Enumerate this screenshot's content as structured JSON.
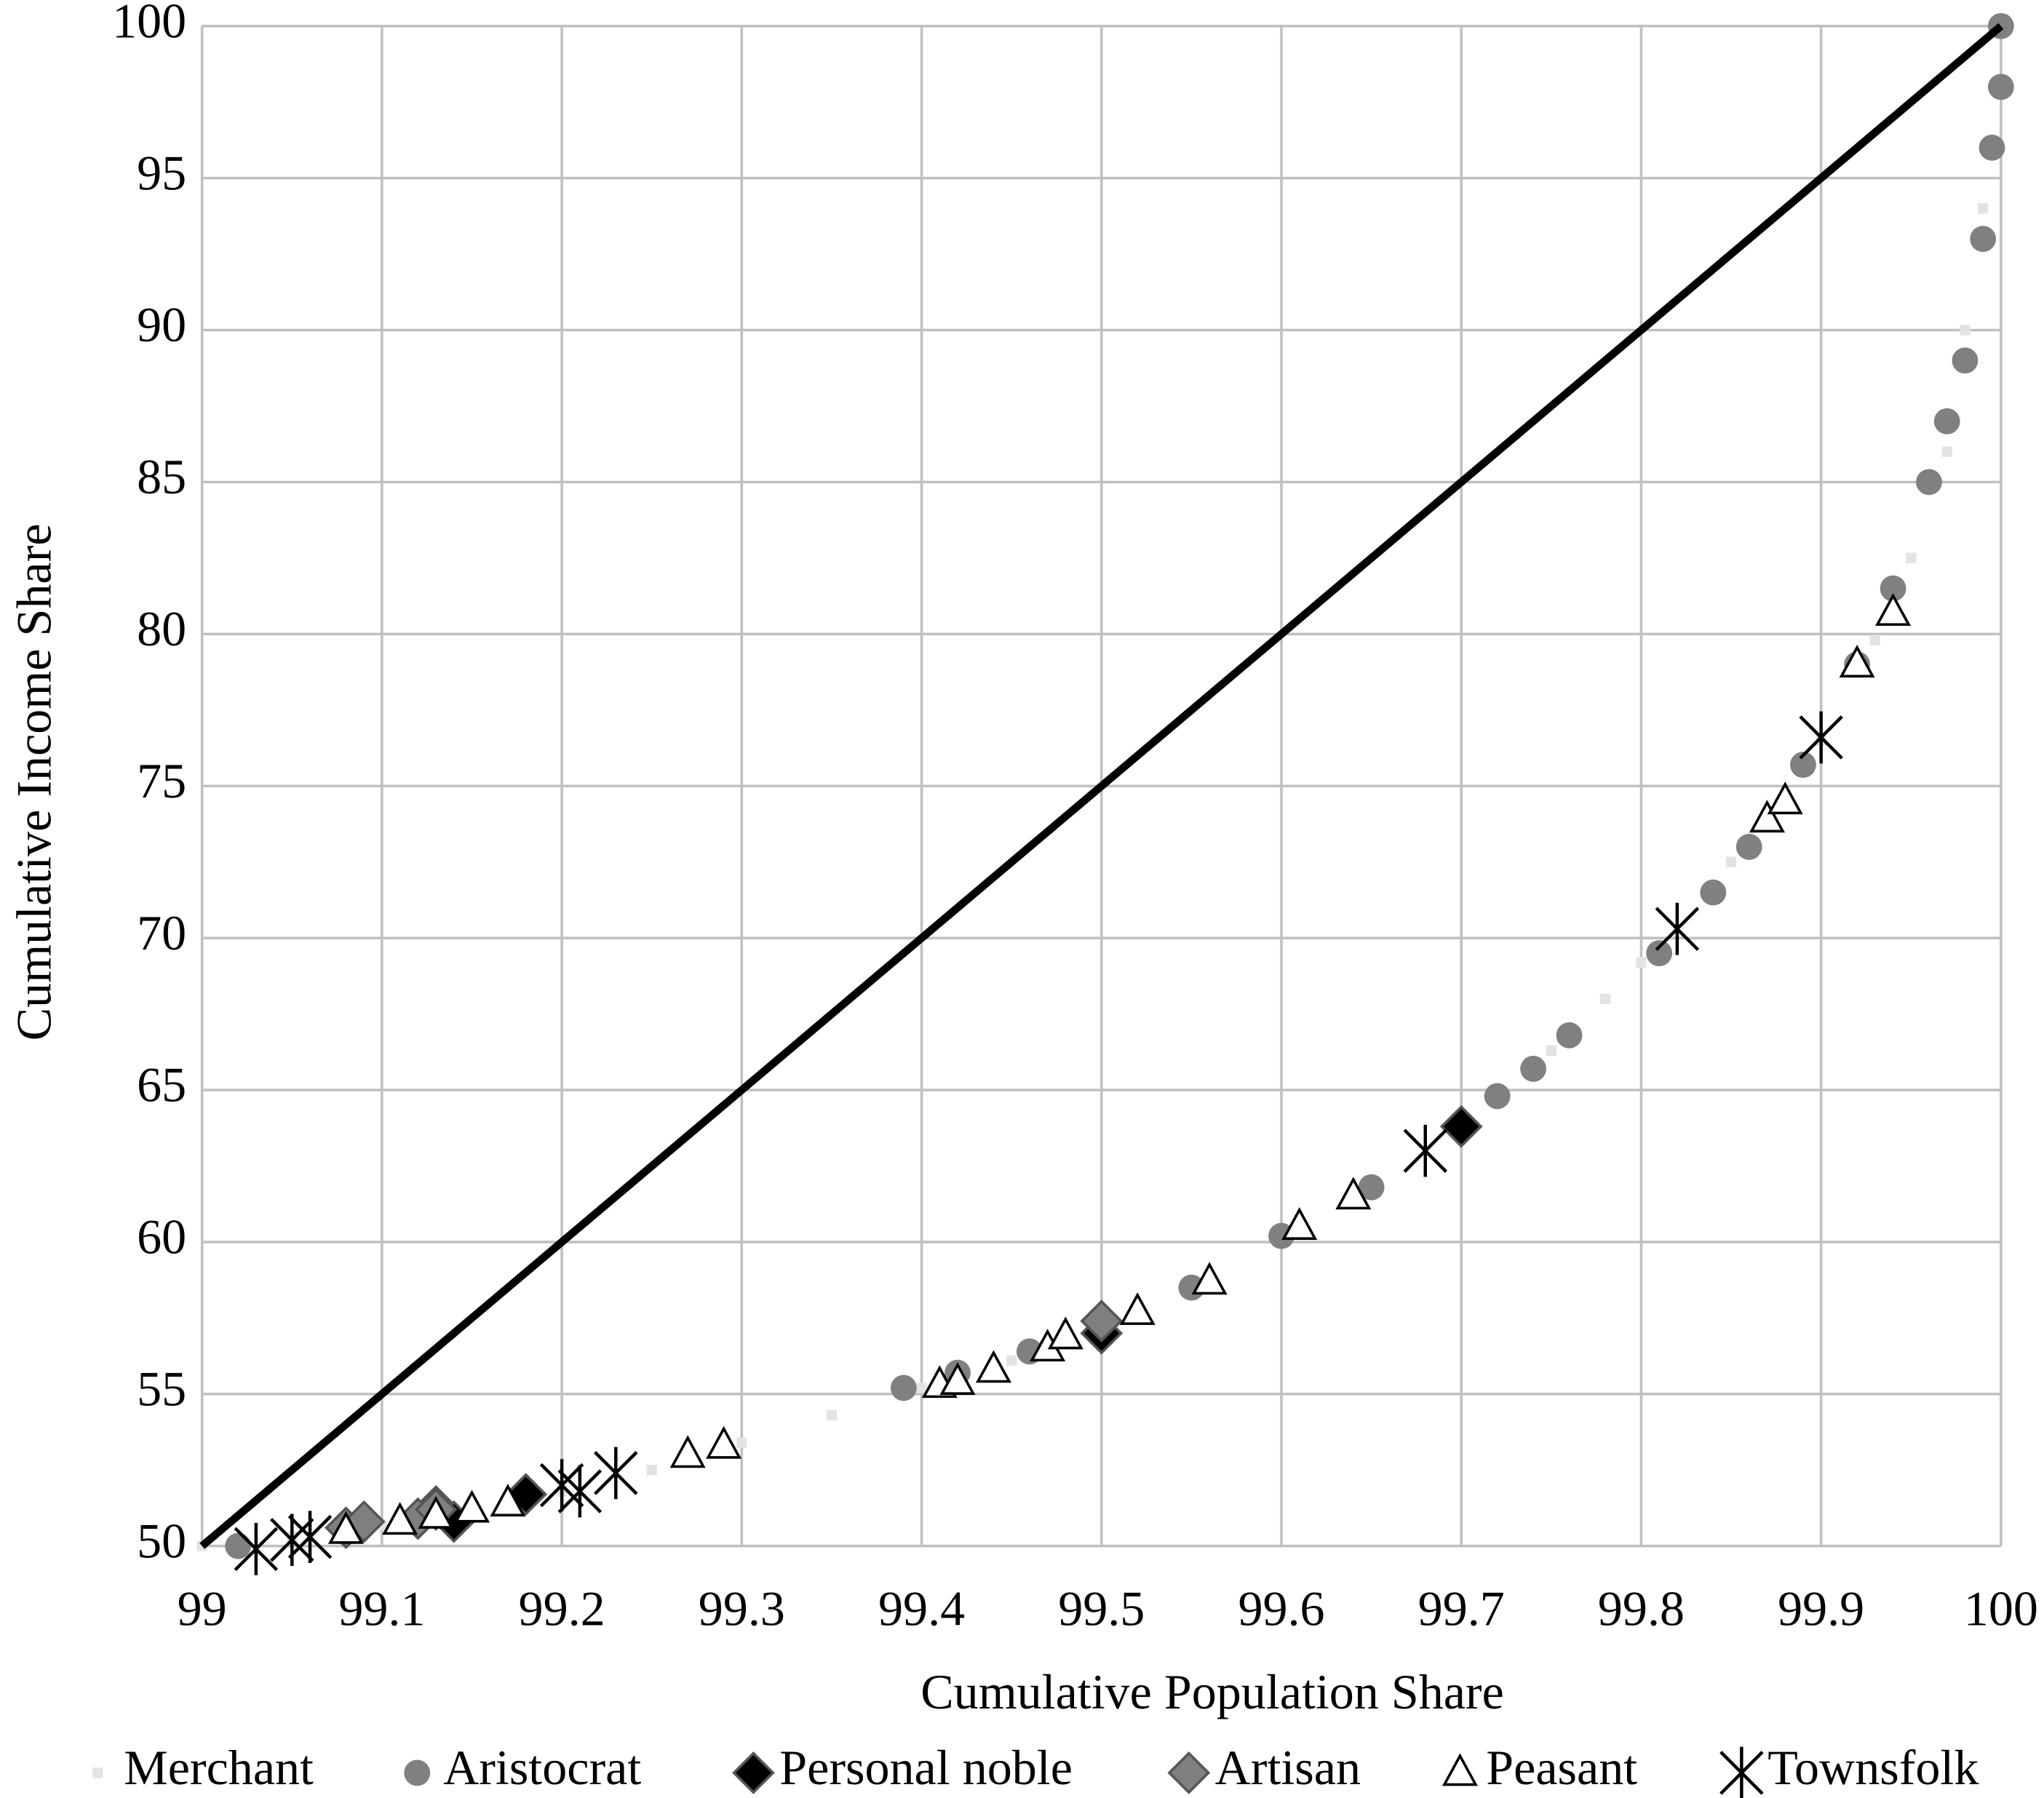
{
  "chart_data": {
    "type": "scatter",
    "x_label": "Cumulative Population Share",
    "y_label": "Cumulative Income Share",
    "xlim": [
      99,
      100
    ],
    "ylim": [
      50,
      100
    ],
    "xticks": [
      99,
      99.1,
      99.2,
      99.3,
      99.4,
      99.5,
      99.6,
      99.7,
      99.8,
      99.9,
      100
    ],
    "yticks": [
      50,
      55,
      60,
      65,
      70,
      75,
      80,
      85,
      90,
      95,
      100
    ],
    "grid": true,
    "legend": "bottom",
    "reference_line": {
      "x": [
        99,
        100
      ],
      "values": [
        50,
        100
      ],
      "color": "#000000"
    },
    "series": [
      {
        "name": "Merchant",
        "marker": "square",
        "color": "#e3e3e3",
        "x": [
          99.0,
          99.05,
          99.1,
          99.15,
          99.2,
          99.25,
          99.3,
          99.35,
          99.4,
          99.45,
          99.5,
          99.55,
          99.6,
          99.65,
          99.7,
          99.75,
          99.78,
          99.8,
          99.85,
          99.9,
          99.93,
          99.95,
          99.97,
          99.98,
          99.99,
          100
        ],
        "values": [
          50.0,
          50.3,
          50.7,
          51.2,
          51.8,
          52.5,
          53.4,
          54.3,
          55.2,
          56.1,
          57.2,
          58.5,
          60.0,
          61.7,
          63.8,
          66.3,
          68.0,
          69.2,
          72.5,
          76.5,
          79.8,
          82.5,
          86.0,
          90.0,
          94.0,
          100.0
        ]
      },
      {
        "name": "Aristocrat",
        "marker": "circle",
        "color": "#808080",
        "x": [
          99.02,
          99.39,
          99.42,
          99.46,
          99.5,
          99.55,
          99.6,
          99.65,
          99.7,
          99.72,
          99.74,
          99.76,
          99.81,
          99.84,
          99.86,
          99.89,
          99.92,
          99.94,
          99.96,
          99.97,
          99.98,
          99.99,
          99.995,
          100,
          100
        ],
        "values": [
          50.0,
          55.2,
          55.7,
          56.4,
          57.3,
          58.5,
          60.2,
          61.8,
          63.9,
          64.8,
          65.7,
          66.8,
          69.5,
          71.5,
          73.0,
          75.7,
          79.0,
          81.5,
          85.0,
          87.0,
          89.0,
          93.0,
          96.0,
          98.0,
          100.0
        ]
      },
      {
        "name": "Personal noble",
        "marker": "diamond",
        "color": "#000000",
        "x": [
          99.13,
          99.14,
          99.18,
          99.5,
          99.7
        ],
        "values": [
          51.3,
          50.8,
          51.7,
          57.0,
          63.8
        ]
      },
      {
        "name": "Artisan",
        "marker": "diamond",
        "color": "#7f7f7f",
        "x": [
          99.08,
          99.09,
          99.12,
          99.13,
          99.5
        ],
        "values": [
          50.6,
          50.8,
          50.9,
          51.2,
          57.4
        ]
      },
      {
        "name": "Peasant",
        "marker": "triangle",
        "color": "#000000",
        "x": [
          99.08,
          99.11,
          99.13,
          99.15,
          99.17,
          99.27,
          99.29,
          99.41,
          99.42,
          99.44,
          99.47,
          99.48,
          99.52,
          99.56,
          99.61,
          99.64,
          99.87,
          99.88,
          99.92,
          99.94
        ],
        "values": [
          50.5,
          50.8,
          51.0,
          51.2,
          51.4,
          53.0,
          53.3,
          55.3,
          55.4,
          55.8,
          56.5,
          56.9,
          57.7,
          58.7,
          60.5,
          61.5,
          73.9,
          74.5,
          79.0,
          80.7
        ]
      },
      {
        "name": "Townsfolk",
        "marker": "asterisk",
        "color": "#000000",
        "x": [
          99.03,
          99.05,
          99.06,
          99.2,
          99.21,
          99.23,
          99.68,
          99.82,
          99.9
        ],
        "values": [
          49.9,
          50.2,
          50.3,
          52.0,
          51.8,
          52.4,
          63.0,
          70.3,
          76.6
        ]
      }
    ]
  }
}
